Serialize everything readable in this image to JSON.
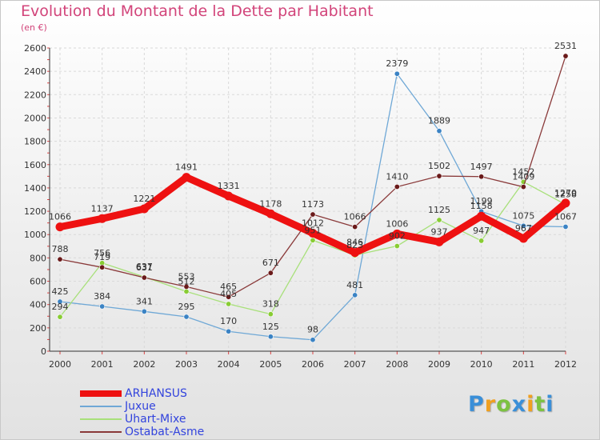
{
  "title": "Evolution du Montant de la Dette par Habitant",
  "subtitle": "(en €)",
  "logo": {
    "text": "Proxiti",
    "letters": [
      {
        "ch": "P",
        "color": "#3a8fd8"
      },
      {
        "ch": "r",
        "color": "#f0a020"
      },
      {
        "ch": "o",
        "color": "#7cc241"
      },
      {
        "ch": "x",
        "color": "#3a8fd8"
      },
      {
        "ch": "i",
        "color": "#f0a020"
      },
      {
        "ch": "t",
        "color": "#7cc241"
      },
      {
        "ch": "i",
        "color": "#3a8fd8"
      }
    ]
  },
  "chart_data": {
    "type": "line",
    "title": "Evolution du Montant de la Dette par Habitant",
    "subtitle": "(en €)",
    "x": [
      "2000",
      "2001",
      "2002",
      "2003",
      "2004",
      "2005",
      "2006",
      "2007",
      "2008",
      "2009",
      "2010",
      "2011",
      "2012"
    ],
    "ylim": [
      0,
      2600
    ],
    "yticks": [
      0,
      200,
      400,
      600,
      800,
      1000,
      1200,
      1400,
      1600,
      1800,
      2000,
      2200,
      2400,
      2600
    ],
    "grid": true,
    "legend_position": "bottom-left",
    "series": [
      {
        "name": "ARHANSUS",
        "color": "#ee1111",
        "width": 9,
        "marker": "#ee1111",
        "values": [
          1066,
          1137,
          1221,
          1491,
          1331,
          1178,
          1012,
          846,
          1006,
          937,
          1158,
          967,
          1270
        ]
      },
      {
        "name": "Juxue",
        "color": "#6fa8d6",
        "width": 1.3,
        "marker": "#3b83c4",
        "values": [
          425,
          384,
          341,
          295,
          170,
          125,
          98,
          481,
          2379,
          1889,
          1199,
          1075,
          1067
        ]
      },
      {
        "name": "Uhart-Mixe",
        "color": "#a8e07a",
        "width": 1.3,
        "marker": "#88cc33",
        "values": [
          294,
          756,
          637,
          512,
          405,
          318,
          951,
          823,
          902,
          1125,
          947,
          1452,
          1258
        ]
      },
      {
        "name": "Ostabat-Asme",
        "color": "#8a3a3a",
        "width": 1.3,
        "marker": "#6a1a1a",
        "values": [
          788,
          719,
          631,
          553,
          465,
          671,
          1173,
          1066,
          1410,
          1502,
          1497,
          1409,
          2531
        ]
      }
    ]
  }
}
